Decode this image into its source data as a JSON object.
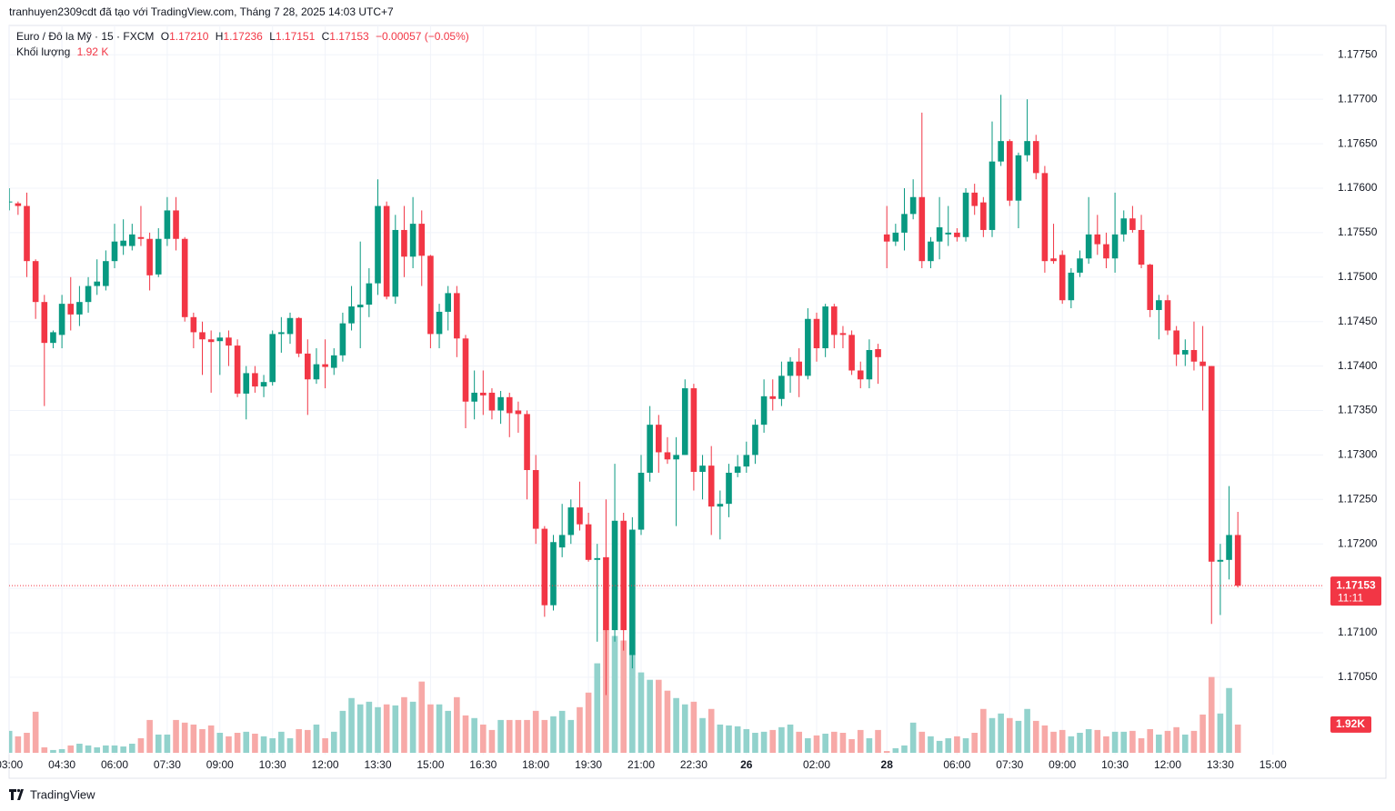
{
  "header": {
    "attribution": "tranhuyen2309cdt đã tạo với TradingView.com, Tháng 7 28, 2025 14:03 UTC+7"
  },
  "chart_data": {
    "type": "candlestick",
    "symbol": "Euro / Đô la Mỹ · 15 · FXCM",
    "legend": {
      "o": "O",
      "open": "1.17210",
      "h": "H",
      "high": "1.17236",
      "l": "L",
      "low": "1.17151",
      "c": "C",
      "close": "1.17153",
      "change": "−0.00057 (−0.05%)"
    },
    "volume_title": "Khối lượng",
    "volume_legend": "1.92 K",
    "up_color": "#089981",
    "down_color": "#f23645",
    "up_volume_color": "#92d2cc",
    "down_volume_color": "#f7a9a7",
    "open": [
      1.17584,
      1.17583,
      1.1758,
      1.17518,
      1.17472,
      1.17426,
      1.17435,
      1.1747,
      1.17458,
      1.17472,
      1.1749,
      1.1749,
      1.17518,
      1.17535,
      1.17535,
      1.17545,
      1.17543,
      1.17503,
      1.17543,
      1.17575,
      1.17543,
      1.17455,
      1.17438,
      1.1743,
      1.17428,
      1.17432,
      1.17423,
      1.17369,
      1.17392,
      1.17377,
      1.17382,
      1.17436,
      1.17436,
      1.17454,
      1.17414,
      1.17385,
      1.17402,
      1.17398,
      1.17412,
      1.17448,
      1.17466,
      1.17469,
      1.17493,
      1.1758,
      1.17478,
      1.17553,
      1.17523,
      1.1756,
      1.17524,
      1.17436,
      1.17461,
      1.17482,
      1.17431,
      1.1736,
      1.1737,
      1.1737,
      1.1735,
      1.17365,
      1.1735,
      1.17346,
      1.17283,
      1.17217,
      1.17131,
      1.17196,
      1.1721,
      1.17241,
      1.17222,
      1.17182,
      1.17185,
      1.17103,
      1.17226,
      1.17075,
      1.17216,
      1.1728,
      1.17334,
      1.17303,
      1.17295,
      1.173,
      1.17375,
      1.17281,
      1.17288,
      1.17242,
      1.17245,
      1.1728,
      1.17287,
      1.173,
      1.17334,
      1.17366,
      1.17363,
      1.17389,
      1.17405,
      1.17389,
      1.17453,
      1.1742,
      1.17467,
      1.17437,
      1.17435,
      1.17395,
      1.17385,
      1.17419,
      1.17548,
      1.1754,
      1.1755,
      1.17571,
      1.1759,
      1.17518,
      1.1754,
      1.17548,
      1.1755,
      1.17545,
      1.17595,
      1.17584,
      1.17553,
      1.1763,
      1.17653,
      1.17586,
      1.17637,
      1.17653,
      1.17617,
      1.17521,
      1.17525,
      1.17474,
      1.17505,
      1.17521,
      1.17548,
      1.17537,
      1.17521,
      1.17548,
      1.17566,
      1.17553,
      1.17514,
      1.17463,
      1.17474,
      1.1744,
      1.17413,
      1.17418,
      1.17405,
      1.174,
      1.1718,
      1.17182,
      1.1721
    ],
    "high": [
      1.176,
      1.17585,
      1.17595,
      1.1752,
      1.1748,
      1.1744,
      1.1748,
      1.175,
      1.1749,
      1.175,
      1.1752,
      1.1753,
      1.1756,
      1.17565,
      1.1756,
      1.1758,
      1.1755,
      1.17555,
      1.1759,
      1.1759,
      1.17545,
      1.1746,
      1.1745,
      1.1744,
      1.17438,
      1.1744,
      1.1743,
      1.174,
      1.174,
      1.1739,
      1.1744,
      1.17455,
      1.1746,
      1.17455,
      1.1743,
      1.1742,
      1.1743,
      1.1742,
      1.1746,
      1.1749,
      1.1754,
      1.1751,
      1.1761,
      1.17585,
      1.1757,
      1.1758,
      1.1759,
      1.17575,
      1.17525,
      1.1747,
      1.1749,
      1.1749,
      1.17435,
      1.17395,
      1.17395,
      1.17375,
      1.17372,
      1.1737,
      1.1736,
      1.1735,
      1.173,
      1.1722,
      1.1721,
      1.17245,
      1.1725,
      1.1727,
      1.17235,
      1.172,
      1.1725,
      1.1729,
      1.17235,
      1.1723,
      1.173,
      1.17355,
      1.17345,
      1.1732,
      1.1732,
      1.17385,
      1.1738,
      1.173,
      1.1731,
      1.1726,
      1.1729,
      1.173,
      1.17315,
      1.1734,
      1.17385,
      1.17385,
      1.17405,
      1.1741,
      1.1742,
      1.17465,
      1.1746,
      1.1747,
      1.1747,
      1.17445,
      1.1744,
      1.17405,
      1.1743,
      1.17425,
      1.1758,
      1.1756,
      1.176,
      1.1761,
      1.17685,
      1.17545,
      1.1759,
      1.1758,
      1.17555,
      1.176,
      1.17605,
      1.1759,
      1.17675,
      1.17705,
      1.17655,
      1.1764,
      1.177,
      1.1766,
      1.17625,
      1.1756,
      1.1753,
      1.1751,
      1.1753,
      1.1759,
      1.1757,
      1.1755,
      1.17595,
      1.17575,
      1.1758,
      1.1757,
      1.17515,
      1.1748,
      1.1748,
      1.17445,
      1.1743,
      1.1745,
      1.17445,
      1.174,
      1.172,
      1.17265,
      1.17236
    ],
    "low": [
      1.17575,
      1.1757,
      1.175,
      1.17453,
      1.17355,
      1.1742,
      1.1742,
      1.1744,
      1.17445,
      1.1746,
      1.1748,
      1.17485,
      1.1751,
      1.17525,
      1.1753,
      1.17535,
      1.17485,
      1.175,
      1.17535,
      1.1753,
      1.1745,
      1.1742,
      1.1739,
      1.1737,
      1.1739,
      1.174,
      1.17365,
      1.1734,
      1.1737,
      1.17365,
      1.17378,
      1.17415,
      1.17425,
      1.1741,
      1.17345,
      1.1738,
      1.17375,
      1.1739,
      1.17405,
      1.1744,
      1.1742,
      1.17455,
      1.1748,
      1.17475,
      1.1747,
      1.175,
      1.1751,
      1.1749,
      1.1742,
      1.1742,
      1.1744,
      1.1741,
      1.1733,
      1.1734,
      1.17345,
      1.1734,
      1.17335,
      1.1732,
      1.17325,
      1.1725,
      1.172,
      1.17118,
      1.17125,
      1.17185,
      1.172,
      1.17215,
      1.1718,
      1.1709,
      1.1703,
      1.1709,
      1.1708,
      1.1706,
      1.1721,
      1.1727,
      1.1728,
      1.1729,
      1.1722,
      1.173,
      1.1726,
      1.1725,
      1.1721,
      1.17205,
      1.1723,
      1.17275,
      1.1728,
      1.1729,
      1.17325,
      1.1735,
      1.17355,
      1.1737,
      1.17365,
      1.17385,
      1.17405,
      1.1741,
      1.1742,
      1.1742,
      1.1739,
      1.17375,
      1.17375,
      1.1738,
      1.1751,
      1.17535,
      1.1753,
      1.17565,
      1.1751,
      1.1751,
      1.1752,
      1.17535,
      1.1754,
      1.1754,
      1.1757,
      1.17545,
      1.17545,
      1.17625,
      1.1758,
      1.17555,
      1.1763,
      1.1761,
      1.17505,
      1.17515,
      1.1747,
      1.17465,
      1.175,
      1.17515,
      1.17525,
      1.1751,
      1.17505,
      1.1754,
      1.1755,
      1.1751,
      1.17455,
      1.1743,
      1.17435,
      1.174,
      1.174,
      1.17395,
      1.1735,
      1.1711,
      1.1712,
      1.1716,
      1.17151
    ],
    "close": [
      1.17585,
      1.1758,
      1.17518,
      1.17472,
      1.17426,
      1.17438,
      1.1747,
      1.17458,
      1.17472,
      1.1749,
      1.17495,
      1.17518,
      1.1754,
      1.17541,
      1.17548,
      1.17543,
      1.17502,
      1.17543,
      1.17575,
      1.17543,
      1.17455,
      1.17438,
      1.1743,
      1.17427,
      1.17432,
      1.17423,
      1.17369,
      1.17392,
      1.17377,
      1.17382,
      1.17436,
      1.17438,
      1.17454,
      1.17414,
      1.17385,
      1.17402,
      1.17399,
      1.17412,
      1.17448,
      1.17467,
      1.17469,
      1.17493,
      1.1758,
      1.17478,
      1.17553,
      1.17523,
      1.1756,
      1.17524,
      1.17436,
      1.17461,
      1.17482,
      1.17431,
      1.1736,
      1.1737,
      1.17367,
      1.1735,
      1.17365,
      1.17347,
      1.17346,
      1.17283,
      1.17217,
      1.17131,
      1.17202,
      1.1721,
      1.17241,
      1.17222,
      1.17182,
      1.17184,
      1.17103,
      1.17226,
      1.17103,
      1.17216,
      1.1728,
      1.17334,
      1.17303,
      1.17295,
      1.173,
      1.17375,
      1.17281,
      1.17288,
      1.17242,
      1.17245,
      1.1728,
      1.17287,
      1.173,
      1.17334,
      1.17366,
      1.17363,
      1.17389,
      1.17405,
      1.17389,
      1.17453,
      1.1742,
      1.17467,
      1.17435,
      1.17435,
      1.17395,
      1.17385,
      1.17418,
      1.1741,
      1.1754,
      1.1755,
      1.17571,
      1.1759,
      1.17518,
      1.1754,
      1.17556,
      1.1755,
      1.17545,
      1.17595,
      1.1758,
      1.17553,
      1.1763,
      1.17653,
      1.17586,
      1.17637,
      1.17653,
      1.17617,
      1.17518,
      1.17518,
      1.17474,
      1.17505,
      1.17521,
      1.17548,
      1.17537,
      1.17521,
      1.17548,
      1.17566,
      1.17553,
      1.17514,
      1.17463,
      1.17474,
      1.1744,
      1.17413,
      1.17418,
      1.17405,
      1.174,
      1.1718,
      1.17182,
      1.1721,
      1.17153
    ],
    "volume": [
      1490,
      1120,
      1360,
      2790,
      370,
      190,
      250,
      500,
      620,
      500,
      370,
      500,
      500,
      430,
      620,
      990,
      2230,
      1240,
      1240,
      2230,
      2050,
      1920,
      1610,
      1860,
      1360,
      1120,
      1360,
      1430,
      1300,
      1120,
      990,
      1430,
      990,
      1610,
      1550,
      1920,
      990,
      1430,
      2850,
      3720,
      3290,
      3470,
      3100,
      3290,
      3220,
      3780,
      3470,
      4840,
      3290,
      3290,
      2850,
      3780,
      2540,
      2360,
      1920,
      1550,
      2230,
      2230,
      2230,
      2230,
      2850,
      2230,
      2480,
      2850,
      2230,
      3100,
      4090,
      6080,
      8370,
      7940,
      7630,
      6700,
      5460,
      4960,
      4960,
      4220,
      3720,
      3290,
      3470,
      2360,
      2980,
      1920,
      1860,
      1800,
      1610,
      1360,
      1430,
      1550,
      1740,
      1920,
      1430,
      990,
      1180,
      1300,
      1430,
      1360,
      930,
      1550,
      990,
      1550,
      120,
      310,
      500,
      2050,
      1430,
      1120,
      810,
      990,
      1120,
      990,
      1360,
      2980,
      2360,
      2670,
      2360,
      2170,
      2980,
      2170,
      1860,
      1430,
      1550,
      1120,
      1360,
      1610,
      1550,
      1120,
      1430,
      1430,
      1490,
      990,
      1610,
      1240,
      1490,
      1740,
      1240,
      1490,
      2600,
      5150,
      2670,
      4400,
      1920
    ],
    "volume_lim": [
      0,
      8400
    ],
    "volume_tag_label": "1.92K",
    "last_price_label": "1.17153",
    "countdown": "11:11",
    "xlim": [
      0,
      150
    ],
    "xticks": [
      {
        "value": 0,
        "label": "03:00"
      },
      {
        "value": 6,
        "label": "04:30"
      },
      {
        "value": 12,
        "label": "06:00"
      },
      {
        "value": 18,
        "label": "07:30"
      },
      {
        "value": 24,
        "label": "09:00"
      },
      {
        "value": 30,
        "label": "10:30"
      },
      {
        "value": 36,
        "label": "12:00"
      },
      {
        "value": 42,
        "label": "13:30"
      },
      {
        "value": 48,
        "label": "15:00"
      },
      {
        "value": 54,
        "label": "16:30"
      },
      {
        "value": 60,
        "label": "18:00"
      },
      {
        "value": 66,
        "label": "19:30"
      },
      {
        "value": 72,
        "label": "21:00"
      },
      {
        "value": 78,
        "label": "22:30"
      },
      {
        "value": 84,
        "label": "26"
      },
      {
        "value": 92,
        "label": "02:00"
      },
      {
        "value": 100,
        "label": "28"
      },
      {
        "value": 108,
        "label": "06:00"
      },
      {
        "value": 114,
        "label": "07:30"
      },
      {
        "value": 120,
        "label": "09:00"
      },
      {
        "value": 126,
        "label": "10:30"
      },
      {
        "value": 132,
        "label": "12:00"
      },
      {
        "value": 138,
        "label": "13:30"
      },
      {
        "value": 144,
        "label": "15:00"
      }
    ],
    "ylim": [
      1.16963,
      1.17783
    ],
    "yticks": [
      {
        "value": 1.1705,
        "label": "1.17050"
      },
      {
        "value": 1.171,
        "label": "1.17100"
      },
      {
        "value": 1.1715,
        "label": "1.17150"
      },
      {
        "value": 1.172,
        "label": "1.17200"
      },
      {
        "value": 1.1725,
        "label": "1.17250"
      },
      {
        "value": 1.173,
        "label": "1.17300"
      },
      {
        "value": 1.1735,
        "label": "1.17350"
      },
      {
        "value": 1.174,
        "label": "1.17400"
      },
      {
        "value": 1.1745,
        "label": "1.17450"
      },
      {
        "value": 1.175,
        "label": "1.17500"
      },
      {
        "value": 1.1755,
        "label": "1.17550"
      },
      {
        "value": 1.176,
        "label": "1.17600"
      },
      {
        "value": 1.1765,
        "label": "1.17650"
      },
      {
        "value": 1.177,
        "label": "1.17700"
      },
      {
        "value": 1.1775,
        "label": "1.17750"
      }
    ],
    "grid": true
  },
  "footer": {
    "brand": "TradingView"
  }
}
